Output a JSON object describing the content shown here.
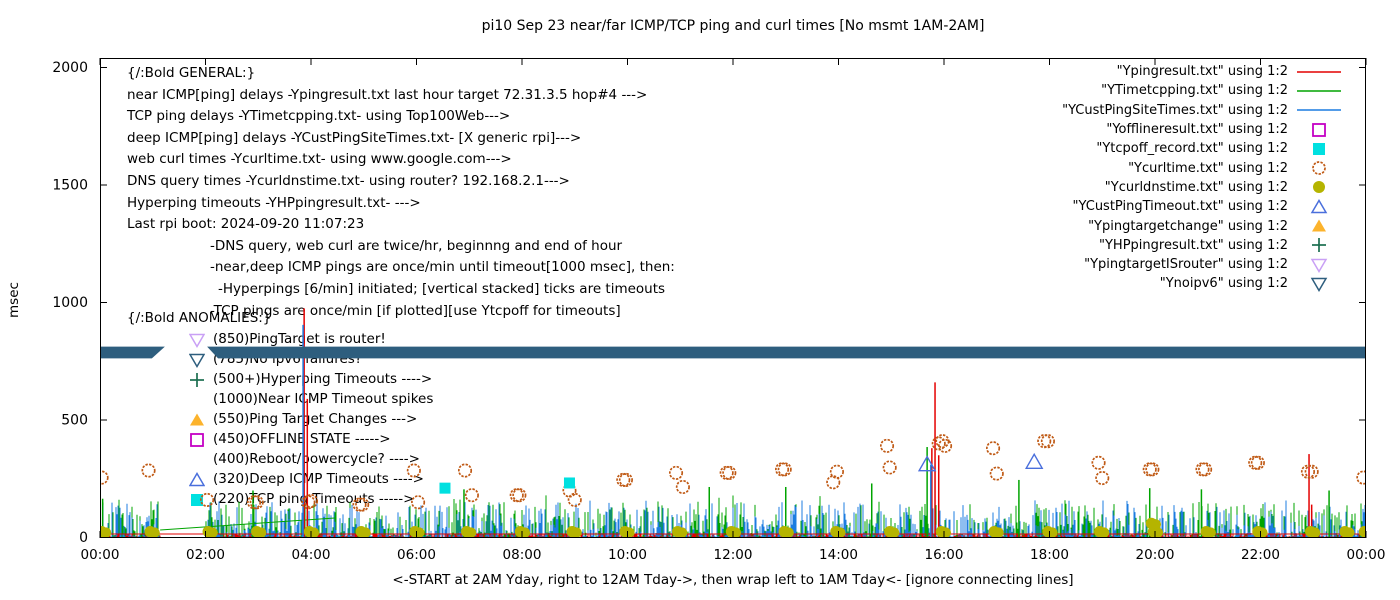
{
  "title": "pi10 Sep 23  near/far ICMP/TCP ping and curl times [No msmt 1AM-2AM]",
  "axes": {
    "ylabel": "msec",
    "xlabel": "<-START at 2AM Yday, right to 12AM Tday->, then wrap left to 1AM Tday<- [ignore connecting lines]",
    "y_ticks": [
      0,
      500,
      1000,
      1500,
      2000
    ],
    "x_ticks": [
      "00:00",
      "02:00",
      "04:00",
      "06:00",
      "08:00",
      "10:00",
      "12:00",
      "14:00",
      "16:00",
      "18:00",
      "20:00",
      "22:00",
      "00:00"
    ],
    "y_range": [
      0,
      2000
    ],
    "x_range_hours": [
      0,
      24
    ]
  },
  "legend": [
    {
      "label": "\"Ypingresult.txt\" using 1:2",
      "swatch": "line",
      "color": "#e40000"
    },
    {
      "label": "\"YTimetcpping.txt\" using 1:2",
      "swatch": "line",
      "color": "#00a400"
    },
    {
      "label": "\"YCustPingSiteTimes.txt\" using 1:2",
      "swatch": "line",
      "color": "#1c7ce0"
    },
    {
      "label": "\"Yofflineresult.txt\" using 1:2",
      "swatch": "open-square",
      "color": "#c400c4"
    },
    {
      "label": "\"Ytcpoff_record.txt\" using 1:2",
      "swatch": "square",
      "color": "#00e0e0"
    },
    {
      "label": "\"Ycurltime.txt\" using 1:2",
      "swatch": "open-circle",
      "color": "#c05a15"
    },
    {
      "label": "\"Ycurldnstime.txt\" using 1:2",
      "swatch": "dot",
      "color": "#b5b400"
    },
    {
      "label": "\"YCustPingTimeout.txt\" using 1:2",
      "swatch": "open-triangle-up",
      "color": "#4a6fdc"
    },
    {
      "label": "\"Ypingtargetchange\" using 1:2",
      "swatch": "triangle-up",
      "color": "#fcb32c"
    },
    {
      "label": "\"YHPpingresult.txt\" using 1:2",
      "swatch": "plus",
      "color": "#1b6e4f"
    },
    {
      "label": "\"YpingtargetISrouter\" using 1:2",
      "swatch": "open-triangle-down",
      "color": "#c9a0f5"
    },
    {
      "label": "\"Ynoipv6\" using 1:2",
      "swatch": "open-triangle-down",
      "color": "#2e5e7e"
    }
  ],
  "general_notes": {
    "header": "{/:Bold GENERAL:}",
    "lines": [
      {
        "x": 127,
        "text": "near ICMP[ping] delays -Ypingresult.txt last hour target 72.31.3.5 hop#4 --->"
      },
      {
        "x": 127,
        "text": "TCP ping delays -YTimetcpping.txt- using Top100Web--->"
      },
      {
        "x": 127,
        "text": "deep ICMP[ping] delays -YCustPingSiteTimes.txt- [X generic rpi]--->"
      },
      {
        "x": 127,
        "text": "web curl times -Ycurltime.txt- using www.google.com--->"
      },
      {
        "x": 127,
        "text": "DNS query times -Ycurldnstime.txt- using router? 192.168.2.1--->"
      },
      {
        "x": 127,
        "text": "Hyperping timeouts -YHPpingresult.txt- --->"
      },
      {
        "x": 127,
        "text": "Last rpi boot: 2024-09-20 11:07:23"
      },
      {
        "x": 210,
        "text": "-DNS query, web curl are twice/hr, beginnng and end of hour"
      },
      {
        "x": 210,
        "text": "-near,deep ICMP pings are once/min until timeout[1000 msec], then:"
      },
      {
        "x": 218,
        "text": "-Hyperpings [6/min] initiated; [vertical stacked] ticks are timeouts"
      },
      {
        "x": 210,
        "text": "-TCP pings are once/min [if plotted][use Ytcpoff for timeouts]"
      }
    ]
  },
  "anomalies_notes": {
    "header": "{/:Bold ANOMALIES:}",
    "items": [
      {
        "marker": "open-triangle-down",
        "color": "#c9a0f5",
        "label": "(850)PingTarget is router!"
      },
      {
        "marker": "open-triangle-down",
        "color": "#2e5e7e",
        "label": "(785)No ipv6 failures?"
      },
      {
        "marker": "plus",
        "color": "#1b6e4f",
        "label": "(500+)Hyperping Timeouts ---->"
      },
      {
        "marker": null,
        "color": null,
        "label": "(1000)Near ICMP Timeout spikes"
      },
      {
        "marker": "triangle-up",
        "color": "#fcb32c",
        "label": "(550)Ping Target Changes --->"
      },
      {
        "marker": "open-square",
        "color": "#c400c4",
        "label": "(450)OFFLINE STATE ----->"
      },
      {
        "marker": null,
        "color": null,
        "label": "(400)Reboot/powercycle? ---->"
      },
      {
        "marker": "open-triangle-up",
        "color": "#4a6fdc",
        "label": "(320)Deep ICMP Timeouts ---->"
      },
      {
        "marker": "square",
        "color": "#00e0e0",
        "label": "(220)TCP ping Timeouts ----->"
      }
    ]
  },
  "chart_data": {
    "type": "line",
    "x_unit": "hours_of_day",
    "y_unit": "msec",
    "ylim": [
      0,
      2000
    ],
    "xlim_hours": [
      0,
      24
    ],
    "grid": false,
    "legend_position": "top-right-inside",
    "no_measurement_window_hours": [
      1.15,
      2.0
    ],
    "noise_model": {
      "comment": "dense 1-min impulse traces hugging 0-150 msec, gap 1AM-2AM",
      "impulse_probability": 0.8,
      "blue_max_msec": 155,
      "green_max_msec": 140,
      "red_baseline_msec": 15
    },
    "series": [
      {
        "name": "Ypingresult.txt",
        "style": "impulses",
        "color": "#e40000",
        "baseline_msec": 15,
        "spikes": [
          [
            3.87,
            975
          ],
          [
            3.93,
            590
          ],
          [
            15.77,
            380
          ],
          [
            15.83,
            660
          ],
          [
            15.9,
            350
          ],
          [
            22.92,
            355
          ],
          [
            22.97,
            140
          ]
        ]
      },
      {
        "name": "YTimetcpping.txt",
        "style": "impulses",
        "color": "#00a400",
        "spikes": [
          [
            0.05,
            165
          ],
          [
            2.9,
            200
          ],
          [
            6.9,
            205
          ],
          [
            11.55,
            215
          ],
          [
            13.0,
            215
          ],
          [
            14.63,
            230
          ],
          [
            15.68,
            385
          ],
          [
            17.42,
            245
          ],
          [
            19.9,
            210
          ],
          [
            20.88,
            205
          ],
          [
            23.3,
            200
          ]
        ],
        "connecting_line": [
          [
            1.14,
            32
          ],
          [
            4.45,
            83
          ]
        ]
      },
      {
        "name": "YCustPingSiteTimes.txt",
        "style": "impulses",
        "color": "#1c7ce0",
        "spikes": [
          [
            3.85,
            905
          ],
          [
            15.75,
            310
          ]
        ]
      },
      {
        "name": "Ytcpoff_record.txt",
        "style": "filled-square",
        "color": "#00e0e0",
        "points": [
          [
            6.54,
            210
          ],
          [
            8.9,
            232
          ]
        ]
      },
      {
        "name": "Ycurltime.txt",
        "style": "open-circle",
        "color": "#c05a15",
        "points": [
          [
            0.03,
            255
          ],
          [
            0.92,
            285
          ],
          [
            2.03,
            160
          ],
          [
            2.92,
            150
          ],
          [
            2.97,
            150
          ],
          [
            3.95,
            150
          ],
          [
            4.0,
            155
          ],
          [
            4.92,
            140
          ],
          [
            4.97,
            140
          ],
          [
            5.95,
            285
          ],
          [
            6.03,
            150
          ],
          [
            6.92,
            285
          ],
          [
            7.05,
            180
          ],
          [
            7.9,
            180
          ],
          [
            7.95,
            180
          ],
          [
            8.9,
            200
          ],
          [
            9.0,
            160
          ],
          [
            9.92,
            245
          ],
          [
            9.97,
            245
          ],
          [
            10.92,
            275
          ],
          [
            11.05,
            215
          ],
          [
            11.88,
            275
          ],
          [
            11.93,
            275
          ],
          [
            12.93,
            290
          ],
          [
            12.98,
            290
          ],
          [
            13.9,
            235
          ],
          [
            13.97,
            280
          ],
          [
            14.92,
            390
          ],
          [
            14.97,
            298
          ],
          [
            15.9,
            400
          ],
          [
            15.97,
            410
          ],
          [
            16.02,
            390
          ],
          [
            16.93,
            380
          ],
          [
            17.0,
            272
          ],
          [
            17.9,
            410
          ],
          [
            17.97,
            410
          ],
          [
            18.93,
            318
          ],
          [
            19.0,
            253
          ],
          [
            19.9,
            290
          ],
          [
            19.95,
            290
          ],
          [
            20.9,
            290
          ],
          [
            20.95,
            290
          ],
          [
            21.9,
            318
          ],
          [
            21.95,
            318
          ],
          [
            22.9,
            280
          ],
          [
            22.97,
            280
          ],
          [
            23.95,
            255
          ]
        ]
      },
      {
        "name": "Ycurldnstime.txt",
        "style": "filled-dot",
        "color": "#b5b400",
        "points": [
          [
            0.03,
            25
          ],
          [
            0.95,
            25
          ],
          [
            2.05,
            25
          ],
          [
            2.97,
            25
          ],
          [
            3.97,
            25
          ],
          [
            4.95,
            25
          ],
          [
            5.97,
            25
          ],
          [
            6.95,
            25
          ],
          [
            7.97,
            25
          ],
          [
            8.95,
            25
          ],
          [
            9.95,
            25
          ],
          [
            10.95,
            25
          ],
          [
            11.97,
            25
          ],
          [
            12.97,
            25
          ],
          [
            13.95,
            25
          ],
          [
            14.97,
            25
          ],
          [
            15.95,
            25
          ],
          [
            16.95,
            25
          ],
          [
            17.97,
            25
          ],
          [
            18.95,
            25
          ],
          [
            19.93,
            60
          ],
          [
            19.97,
            25
          ],
          [
            20.97,
            25
          ],
          [
            21.95,
            25
          ],
          [
            22.95,
            25
          ],
          [
            23.6,
            25
          ],
          [
            23.97,
            25
          ]
        ]
      },
      {
        "name": "YCustPingTimeout.txt",
        "style": "open-triangle-up",
        "color": "#4a6fdc",
        "points": [
          [
            15.68,
            310
          ],
          [
            17.71,
            320
          ]
        ]
      },
      {
        "name": "Ynoipv6",
        "style": "band",
        "color": "#2e5e7e",
        "band_msec": [
          762,
          812
        ],
        "segments_hours": [
          [
            0,
            1.23
          ],
          [
            2.03,
            24
          ]
        ]
      }
    ]
  }
}
